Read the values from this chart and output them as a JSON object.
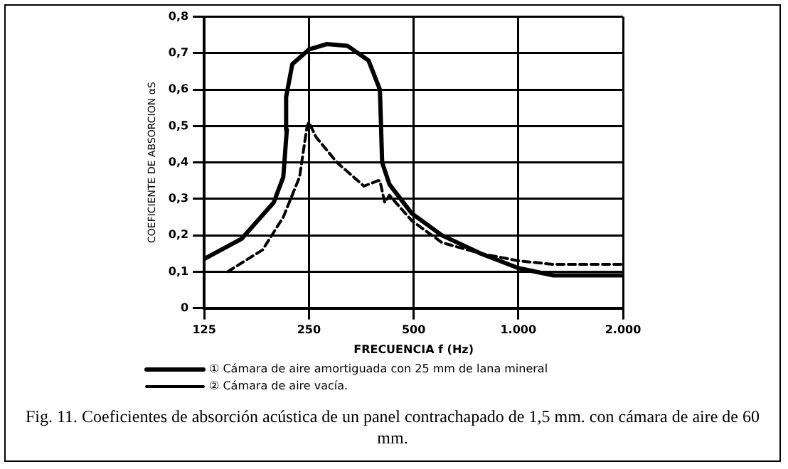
{
  "chart_data": {
    "type": "line",
    "xlabel": "FRECUENCIA f (Hz)",
    "ylabel": "COEFICIENTE DE ABSORCION αS",
    "log": "x",
    "xlim": [
      125,
      2000
    ],
    "ylim": [
      0,
      0.8
    ],
    "xticks": [
      125,
      250,
      500,
      {
        "value": 1000,
        "label": "1.000"
      },
      {
        "value": 2000,
        "label": "2.000"
      }
    ],
    "yticks": [
      0,
      {
        "value": 0.1,
        "label": "0,1"
      },
      {
        "value": 0.2,
        "label": "0,2"
      },
      {
        "value": 0.3,
        "label": "0,3"
      },
      {
        "value": 0.4,
        "label": "0,4"
      },
      {
        "value": 0.5,
        "label": "0,5"
      },
      {
        "value": 0.6,
        "label": "0,6"
      },
      {
        "value": 0.7,
        "label": "0,7"
      },
      {
        "value": 0.8,
        "label": "0,8"
      }
    ],
    "grid": true,
    "legend": "bottom",
    "marker": "none",
    "series": [
      {
        "name": "① Cámara de aire amortiguada con 25 mm de lana mineral",
        "color": "#000000",
        "line_style": "solid",
        "x": [
          125,
          160,
          198,
          211,
          216,
          215,
          224,
          250,
          281,
          323,
          371,
          400,
          406,
          426,
          494,
          603,
          779,
          1000,
          1260,
          2000
        ],
        "values": [
          0.135,
          0.19,
          0.29,
          0.36,
          0.49,
          0.58,
          0.67,
          0.71,
          0.725,
          0.72,
          0.68,
          0.6,
          0.4,
          0.34,
          0.26,
          0.2,
          0.15,
          0.11,
          0.09,
          0.09
        ]
      },
      {
        "name": "② Cámara de aire vacía.",
        "color": "#000000",
        "line_style": "dashed",
        "x": [
          146,
          184,
          211,
          235,
          247,
          250,
          262,
          301,
          360,
          395,
          400,
          413,
          426,
          494,
          603,
          779,
          1000,
          1260,
          2000
        ],
        "values": [
          0.1,
          0.16,
          0.25,
          0.36,
          0.5,
          0.51,
          0.47,
          0.4,
          0.335,
          0.35,
          0.35,
          0.29,
          0.31,
          0.24,
          0.18,
          0.15,
          0.13,
          0.12,
          0.12
        ]
      }
    ],
    "annotations": [
      "Fig. 11. Coeficientes de absorción acústica de un panel contrachapado de 1,5 mm. con cámara de aire de 60 mm."
    ]
  }
}
